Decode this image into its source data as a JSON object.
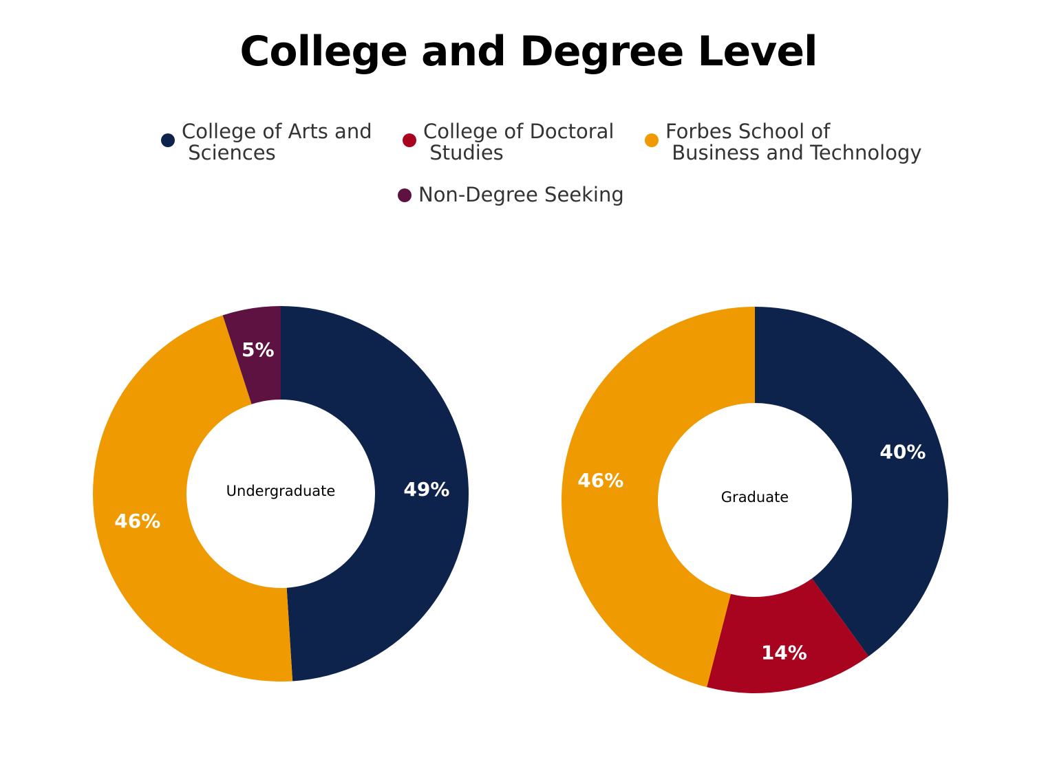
{
  "chart_data": [
    {
      "type": "pie",
      "center_label": "Undergraduate",
      "categories": [
        "College of Arts and Sciences",
        "Forbes School of Business and Technology",
        "Non-Degree Seeking"
      ],
      "values": [
        49,
        46,
        5
      ],
      "labels": [
        "49%",
        "46%",
        "5%"
      ],
      "colors": [
        "#0d234b",
        "#ef9a00",
        "#5e1242"
      ]
    },
    {
      "type": "pie",
      "center_label": "Graduate",
      "categories": [
        "College of Arts and Sciences",
        "College of Doctoral Studies",
        "Forbes School of Business and Technology"
      ],
      "values": [
        40,
        14,
        46
      ],
      "labels": [
        "40%",
        "14%",
        "46%"
      ],
      "colors": [
        "#0d234b",
        "#a80420",
        "#ef9a00"
      ]
    }
  ],
  "title": "College and Degree Level",
  "legend": [
    {
      "line1": "College of Arts and",
      "line2": " Sciences",
      "color": "#0d234b"
    },
    {
      "line1": "College of Doctoral",
      "line2": " Studies",
      "color": "#a80420"
    },
    {
      "line1": "Forbes School of",
      "line2": " Business and Technology",
      "color": "#ef9a00"
    },
    {
      "line1": "Non-Degree Seeking",
      "line2": "",
      "color": "#5e1242"
    }
  ]
}
